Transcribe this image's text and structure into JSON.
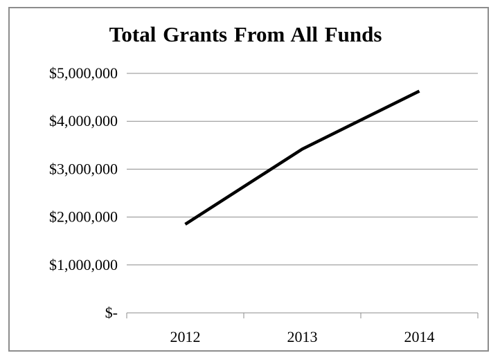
{
  "chart_data": {
    "type": "line",
    "title": "Total Grants From All Funds",
    "xlabel": "",
    "ylabel": "",
    "categories": [
      "2012",
      "2013",
      "2014"
    ],
    "series": [
      {
        "values": [
          1850000,
          3420000,
          4630000
        ],
        "color": "#000000"
      }
    ],
    "ylim": [
      0,
      5000000
    ],
    "y_ticks": [
      0,
      1000000,
      2000000,
      3000000,
      4000000,
      5000000
    ],
    "y_tick_labels": [
      "$-",
      "$1,000,000",
      "$2,000,000",
      "$3,000,000",
      "$4,000,000",
      "$5,000,000"
    ],
    "grid": true,
    "legend": "none",
    "colors": {
      "line": "#000000",
      "grid": "#8c8c8c",
      "axis": "#8c8c8c",
      "frame": "#8c8c8c"
    }
  }
}
